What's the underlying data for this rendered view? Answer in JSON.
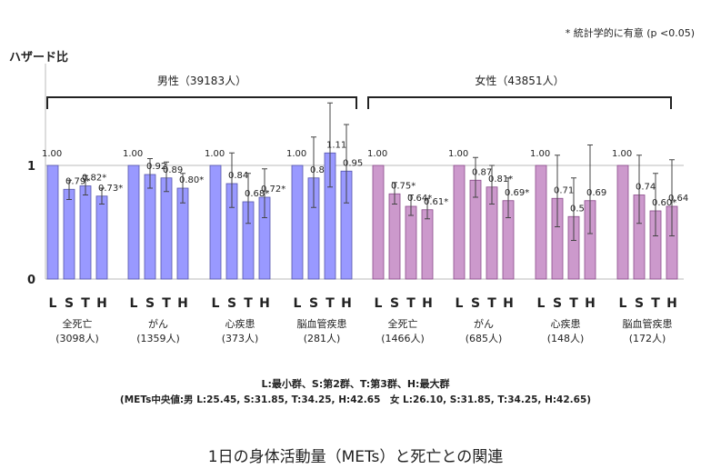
{
  "chart_data": {
    "type": "bar",
    "ylabel": "ハザード比",
    "note": "* 統計学的に有意 (p <0.05)",
    "ylim": [
      0,
      1.9
    ],
    "yticks": [
      "0",
      "1"
    ],
    "grid": "y=1 only",
    "bar_letters": [
      "L",
      "S",
      "T",
      "H"
    ],
    "panels": [
      {
        "label": "男性（39183人）",
        "color": "#9999ff",
        "groups": [
          {
            "name": "全死亡",
            "n": "(3098人)",
            "values": [
              1.0,
              0.79,
              0.82,
              0.73
            ],
            "labels": [
              "1.00",
              "0.79*",
              "0.82*",
              "0.73*"
            ],
            "ci": [
              null,
              [
                0.7,
                0.87
              ],
              [
                0.74,
                0.91
              ],
              [
                0.66,
                0.8
              ]
            ]
          },
          {
            "name": "がん",
            "n": "(1359人)",
            "values": [
              1.0,
              0.92,
              0.89,
              0.8
            ],
            "labels": [
              "1.00",
              "0.92",
              "0.89",
              "0.80*"
            ],
            "ci": [
              null,
              [
                0.8,
                1.06
              ],
              [
                0.77,
                1.03
              ],
              [
                0.67,
                0.93
              ]
            ]
          },
          {
            "name": "心疾患",
            "n": "(373人)",
            "values": [
              1.0,
              0.84,
              0.68,
              0.72
            ],
            "labels": [
              "1.00",
              "0.84",
              "0.68*",
              "0.72*"
            ],
            "ci": [
              null,
              [
                0.63,
                1.11
              ],
              [
                0.49,
                0.93
              ],
              [
                0.54,
                0.97
              ]
            ]
          },
          {
            "name": "脳血管疾患",
            "n": "(281人)",
            "values": [
              1.0,
              0.89,
              1.11,
              0.95
            ],
            "labels": [
              "1.00",
              "0.89",
              "1.11",
              "0.95"
            ],
            "ci": [
              null,
              [
                0.63,
                1.25
              ],
              [
                0.81,
                1.55
              ],
              [
                0.67,
                1.36
              ]
            ]
          }
        ]
      },
      {
        "label": "女性（43851人）",
        "color": "#cc99cc",
        "groups": [
          {
            "name": "全死亡",
            "n": "(1466人)",
            "values": [
              1.0,
              0.75,
              0.64,
              0.61
            ],
            "labels": [
              "1.00",
              "0.75*",
              "0.64*",
              "0.61*"
            ],
            "ci": [
              null,
              [
                0.66,
                0.85
              ],
              [
                0.56,
                0.74
              ],
              [
                0.53,
                0.71
              ]
            ]
          },
          {
            "name": "がん",
            "n": "(685人)",
            "values": [
              1.0,
              0.87,
              0.81,
              0.69
            ],
            "labels": [
              "1.00",
              "0.87",
              "0.81*",
              "0.69*"
            ],
            "ci": [
              null,
              [
                0.72,
                1.07
              ],
              [
                0.66,
                1.0
              ],
              [
                0.54,
                0.89
              ]
            ]
          },
          {
            "name": "心疾患",
            "n": "(148人)",
            "values": [
              1.0,
              0.71,
              0.55,
              0.69
            ],
            "labels": [
              "1.00",
              "0.71",
              "0.55*",
              "0.69"
            ],
            "ci": [
              null,
              [
                0.46,
                1.09
              ],
              [
                0.34,
                0.89
              ],
              [
                0.4,
                1.18
              ]
            ]
          },
          {
            "name": "脳血管疾患",
            "n": "(172人)",
            "values": [
              1.0,
              0.74,
              0.6,
              0.64
            ],
            "labels": [
              "1.00",
              "0.74",
              "0.60*",
              "0.64"
            ],
            "ci": [
              null,
              [
                0.49,
                1.09
              ],
              [
                0.38,
                0.93
              ],
              [
                0.38,
                1.05
              ]
            ]
          }
        ]
      }
    ],
    "legend_line1": "L:最小群、S:第2群、T:第3群、H:最大群",
    "legend_line2": "(METs中央値:男 L:25.45, S:31.85, T:34.25, H:42.65　女 L:26.10, S:31.85, T:34.25, H:42.65)",
    "title": "1日の身体活動量（METs）と死亡との関連"
  }
}
